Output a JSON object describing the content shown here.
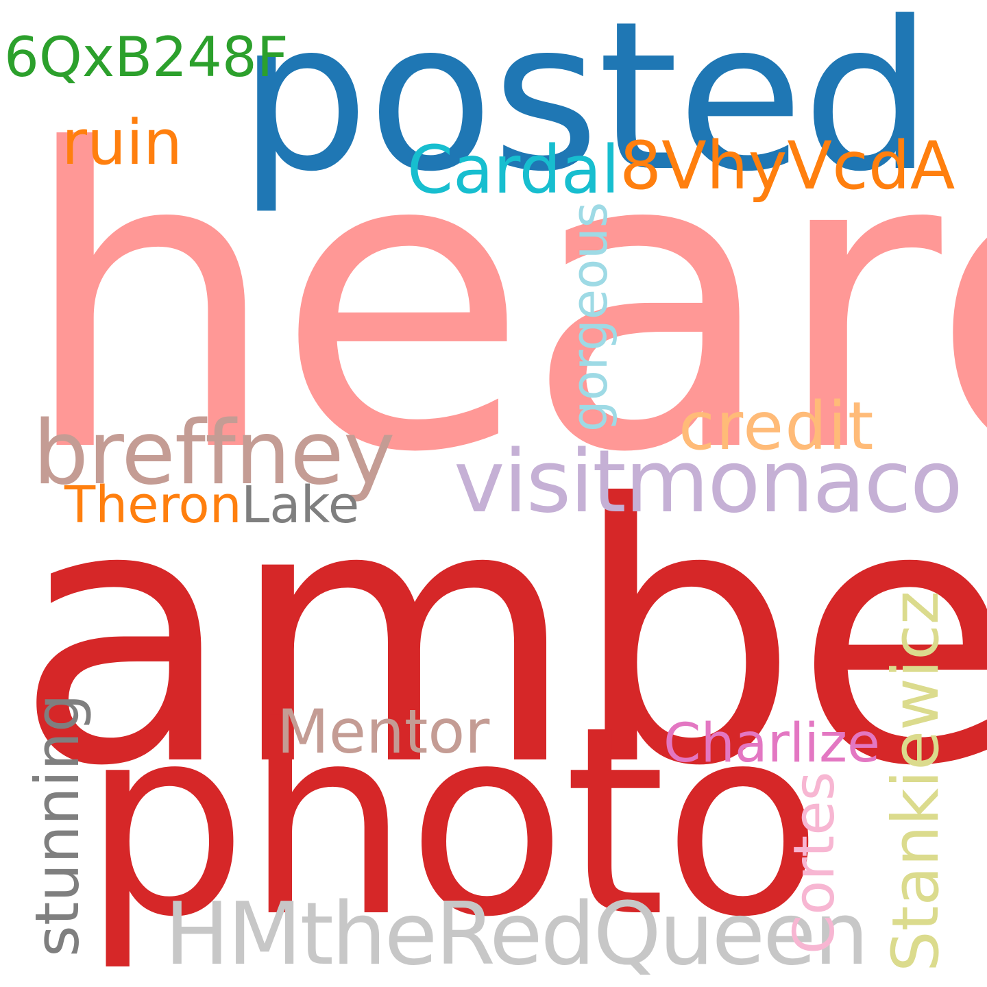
{
  "words": {
    "heard": {
      "text": "heard",
      "color": "#ff9896"
    },
    "amber": {
      "text": "amber",
      "color": "#d62728"
    },
    "posted": {
      "text": "posted",
      "color": "#1f77b4"
    },
    "photo": {
      "text": "photo",
      "color": "#d62728"
    },
    "visitmonaco": {
      "text": "visitmonaco",
      "color": "#c5b0d5"
    },
    "breffney": {
      "text": "breffney",
      "color": "#c49c94"
    },
    "hmtheredqueen": {
      "text": "HMtheRedQueen",
      "color": "#c7c7c7"
    },
    "vhyvcda": {
      "text": "8VhyVcdA",
      "color": "#ff7f0e"
    },
    "qxb248f": {
      "text": "6QxB248F",
      "color": "#2ca02c"
    },
    "ruin": {
      "text": "ruin",
      "color": "#ff7f0e"
    },
    "cardal": {
      "text": "Cardal",
      "color": "#17becf"
    },
    "credit": {
      "text": "credit",
      "color": "#ffbb78"
    },
    "theron": {
      "text": "Theron",
      "color": "#ff7f0e"
    },
    "lake": {
      "text": "Lake",
      "color": "#7f7f7f"
    },
    "mentor": {
      "text": "Mentor",
      "color": "#c49c94"
    },
    "charlize": {
      "text": "Charlize",
      "color": "#e377c2"
    },
    "gorgeous": {
      "text": "gorgeous",
      "color": "#9edae5"
    },
    "stunning": {
      "text": "stunning",
      "color": "#7f7f7f"
    },
    "cortes": {
      "text": "Cortes",
      "color": "#f7b6d2"
    },
    "stankiewicz": {
      "text": "Stankiewicz",
      "color": "#dbdb8d"
    }
  }
}
